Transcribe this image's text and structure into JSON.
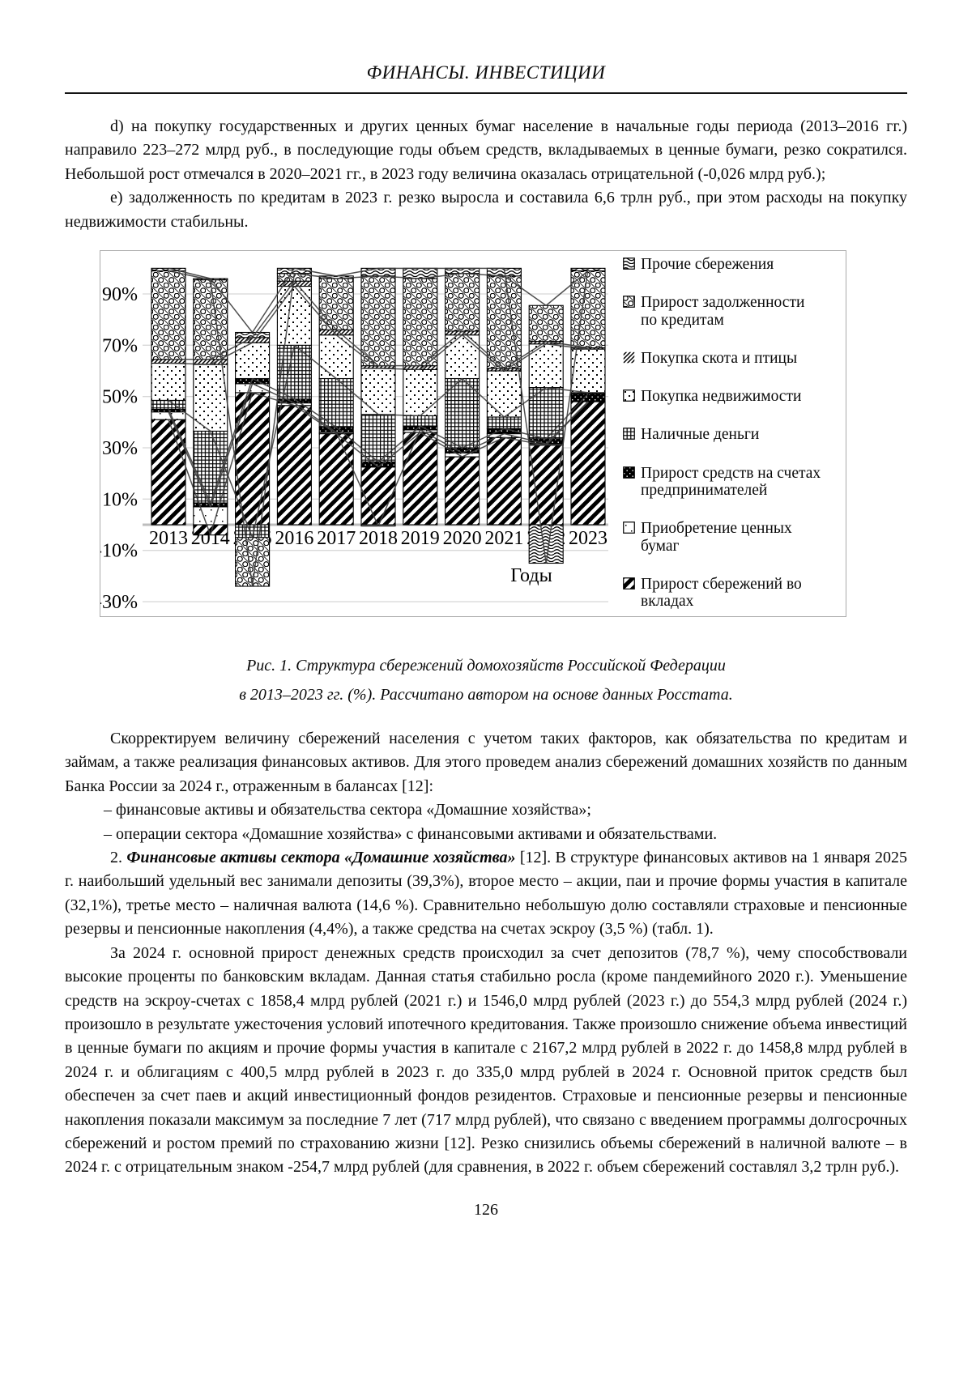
{
  "header": {
    "title": "ФИНАНСЫ. ИНВЕСТИЦИИ"
  },
  "body": {
    "para_d": "d) на покупку государственных и других ценных бумаг население в начальные годы периода (2013–2016 гг.) направило 223–272 млрд руб., в последующие годы объем средств, вкладываемых в ценные бумаги, резко сократился. Небольшой рост отмечался в 2020–2021 гг., в 2023 году величина оказалась отрицательной (-0,026 млрд руб.);",
    "para_e": "е) задолженность по кредитам в 2023 г. резко выросла и составила 6,6 трлн руб., при этом расходы на покупку недвижимости стабильны.",
    "para_correct": "Скорректируем величину сбережений населения с учетом таких факторов, как обязательства по кредитам и займам, а также реализация финансовых активов. Для этого проведем анализ сбережений домашних хозяйств по данным Банка России за 2024 г., отраженным в балансах [12]:",
    "list_item_1": "– финансовые активы и обязательства сектора «Домашние хозяйства»;",
    "list_item_2": "– операции сектора «Домашние хозяйства» с финансовыми активами и обязательствами.",
    "para2_prefix": "2. ",
    "para2_bold": "Финансовые активы сектора «Домашние хозяйства»",
    "para2_rest": " [12]. В структуре финансовых активов на 1 января 2025 г. наибольший удельный вес занимали депозиты (39,3%), второе место – акции, паи и прочие формы участия в капитале (32,1%), третье место – наличная валюта (14,6 %). Сравнительно небольшую долю составляли страховые и пенсионные резервы и пенсионные накопления (4,4%), а также средства на счетах эскроу (3,5 %) (табл. 1).",
    "para_2024": "За 2024 г. основной прирост денежных средств происходил за счет депозитов (78,7 %), чему способствовали высокие проценты по банковским вкладам. Данная статья стабильно росла (кроме пандемийного 2020 г.). Уменьшение средств на эскроу-счетах с 1858,4 млрд рублей (2021 г.) и 1546,0 млрд рублей (2023 г.) до 554,3 млрд рублей (2024 г.) произошло в результате ужесточения условий ипотечного кредитования. Также произошло снижение объема инвестиций в ценные бумаги по акциям и прочие формы участия в капитале с 2167,2 млрд рублей в 2022 г. до 1458,8 млрд рублей в 2024 г. и облигациям с 400,5 млрд рублей в 2023 г. до 335,0 млрд рублей в 2024 г. Основной приток средств был обеспечен за счет паев и акций инвестиционный фондов резидентов. Страховые и пенсионные резервы и пенсионные накопления показали максимум за последние 7 лет (717 млрд рублей), что связано с введением программы долгосрочных сбережений и ростом премий по страхованию жизни [12]. Резко снизились объемы сбережений в наличной валюте – в 2024 г. с отрицательным знаком -254,7 млрд рублей (для сравнения, в 2022 г. объем сбережений составлял 3,2 трлн руб.)."
  },
  "figure": {
    "caption_line1": "Рис. 1. Структура сбережений домохозяйств Российской Федерации",
    "caption_line2": "в 2013–2023 гг. (%). Рассчитано автором на основе данных Росстата."
  },
  "page_number": "126",
  "chart_data": {
    "type": "bar",
    "stacked": true,
    "x_axis_label": "Годы",
    "y_ticks": [
      90,
      70,
      50,
      30,
      10,
      -10,
      -30
    ],
    "y_tick_labels": [
      "90%",
      "70%",
      "50%",
      "30%",
      "10%",
      "-10%",
      "-30%"
    ],
    "ylim": [
      -37,
      106
    ],
    "categories": [
      "2013",
      "2014",
      "2015",
      "2016",
      "2017",
      "2018",
      "2019",
      "2020",
      "2021",
      "2022",
      "2023"
    ],
    "series": [
      {
        "name": "Прирост сбережений во вкладах",
        "pattern": "deposits",
        "values": [
          41,
          -4,
          51.5,
          46.5,
          35.5,
          22.5,
          36,
          26.5,
          34,
          31,
          48
        ]
      },
      {
        "name": "Приобретение ценных бумаг",
        "pattern": "securities",
        "values": [
          3,
          7,
          3.5,
          1,
          0.5,
          -0.5,
          1,
          1.5,
          1.5,
          0.5,
          0
        ]
      },
      {
        "name": "Прирост средств на счетах предпринимателей",
        "pattern": "entrepreneur",
        "values": [
          1,
          1.5,
          2,
          1.5,
          2,
          2,
          1.5,
          2,
          2,
          2,
          3
        ]
      },
      {
        "name": "Наличные деньги",
        "pattern": "cash",
        "values": [
          3.5,
          28,
          -5,
          21,
          19,
          18.5,
          4,
          27,
          4.5,
          20,
          0.5
        ]
      },
      {
        "name": "Покупка недвижимости",
        "pattern": "realestate",
        "values": [
          14.5,
          26,
          14,
          23,
          17,
          18,
          18,
          17,
          18,
          17,
          17
        ]
      },
      {
        "name": "Покупка скота и птицы",
        "pattern": "livestock",
        "values": [
          1.5,
          2,
          2,
          2,
          2,
          1,
          1.5,
          1.5,
          1,
          1,
          0.5
        ]
      },
      {
        "name": "Прирост задолженности по кредитам",
        "pattern": "credit",
        "values": [
          34.5,
          31,
          -19,
          3,
          20,
          35,
          34,
          22.5,
          36,
          14,
          30
        ]
      },
      {
        "name": "Прочие сбережения",
        "pattern": "other",
        "values": [
          1,
          0.5,
          2,
          2,
          1,
          3,
          4,
          2,
          3,
          -15,
          1
        ]
      }
    ],
    "legend": [
      {
        "label_lines": [
          "Прочие сбережения"
        ],
        "pattern": "other",
        "boxed": true
      },
      {
        "label_lines": [
          "Прирост задолженности",
          "по кредитам"
        ],
        "pattern": "credit",
        "boxed": true
      },
      {
        "label_lines": [
          "Покупка скота и птицы"
        ],
        "pattern": "livestock",
        "boxed": false
      },
      {
        "label_lines": [
          "Покупка недвижимости"
        ],
        "pattern": "realestate",
        "boxed": true
      },
      {
        "label_lines": [
          "Наличные деньги"
        ],
        "pattern": "cash",
        "boxed": true
      },
      {
        "label_lines": [
          "Прирост средств на счетах",
          "предпринимателей"
        ],
        "pattern": "entrepreneur",
        "boxed": true
      },
      {
        "label_lines": [
          "Приобретение ценных",
          "бумаг"
        ],
        "pattern": "securities",
        "boxed": true
      },
      {
        "label_lines": [
          "Прирост сбережений во",
          "вкладах"
        ],
        "pattern": "deposits",
        "boxed": true
      }
    ]
  }
}
